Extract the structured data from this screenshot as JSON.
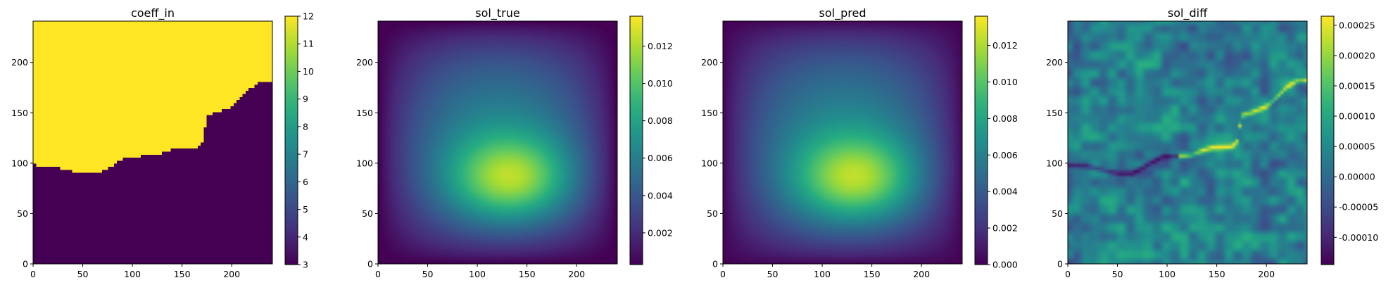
{
  "chart_data": [
    {
      "type": "heatmap",
      "title": "coeff_in",
      "xlim": [
        0,
        241
      ],
      "ylim": [
        0,
        241
      ],
      "xticks": [
        0,
        50,
        100,
        150,
        200
      ],
      "yticks": [
        0,
        50,
        100,
        150,
        200
      ],
      "colormap": "viridis",
      "colorbar": {
        "min": 3,
        "max": 12,
        "ticks": [
          3,
          4,
          5,
          6,
          7,
          8,
          9,
          10,
          11,
          12
        ],
        "labels": [
          "3",
          "4",
          "5",
          "6",
          "7",
          "8",
          "9",
          "10",
          "11",
          "12"
        ]
      },
      "field": {
        "kind": "two-phase",
        "value_above": 12,
        "value_below": 3,
        "interface_y": [
          [
            0,
            98
          ],
          [
            20,
            97
          ],
          [
            40,
            92
          ],
          [
            50,
            90
          ],
          [
            65,
            90
          ],
          [
            75,
            95
          ],
          [
            85,
            101
          ],
          [
            95,
            106
          ],
          [
            110,
            107
          ],
          [
            125,
            108
          ],
          [
            135,
            112
          ],
          [
            145,
            115
          ],
          [
            165,
            116
          ],
          [
            170,
            120
          ],
          [
            172,
            130
          ],
          [
            175,
            147
          ],
          [
            185,
            150
          ],
          [
            200,
            156
          ],
          [
            210,
            165
          ],
          [
            220,
            175
          ],
          [
            230,
            181
          ],
          [
            241,
            182
          ]
        ]
      }
    },
    {
      "type": "heatmap",
      "title": "sol_true",
      "xlim": [
        0,
        241
      ],
      "ylim": [
        0,
        241
      ],
      "xticks": [
        0,
        50,
        100,
        150,
        200
      ],
      "yticks": [
        0,
        50,
        100,
        150,
        200
      ],
      "colormap": "viridis",
      "colorbar": {
        "min": 0.0003,
        "max": 0.0136,
        "ticks": [
          0.002,
          0.004,
          0.006,
          0.008,
          0.01,
          0.012
        ],
        "labels": [
          "0.002",
          "0.004",
          "0.006",
          "0.008",
          "0.010",
          "0.012"
        ]
      },
      "field": {
        "kind": "smooth-peak",
        "peak_x": 138,
        "peak_y": 80,
        "max": 0.0136
      }
    },
    {
      "type": "heatmap",
      "title": "sol_pred",
      "xlim": [
        0,
        241
      ],
      "ylim": [
        0,
        241
      ],
      "xticks": [
        0,
        50,
        100,
        150,
        200
      ],
      "yticks": [
        0,
        50,
        100,
        150,
        200
      ],
      "colormap": "viridis",
      "colorbar": {
        "min": 0.0,
        "max": 0.0136,
        "ticks": [
          0.0,
          0.002,
          0.004,
          0.006,
          0.008,
          0.01,
          0.012
        ],
        "labels": [
          "0.000",
          "0.002",
          "0.004",
          "0.006",
          "0.008",
          "0.010",
          "0.012"
        ]
      },
      "field": {
        "kind": "smooth-peak",
        "peak_x": 138,
        "peak_y": 80,
        "max": 0.0136
      }
    },
    {
      "type": "heatmap",
      "title": "sol_diff",
      "xlim": [
        0,
        241
      ],
      "ylim": [
        0,
        241
      ],
      "xticks": [
        0,
        50,
        100,
        150,
        200
      ],
      "yticks": [
        0,
        50,
        100,
        150,
        200
      ],
      "colormap": "viridis",
      "colorbar": {
        "min": -0.000145,
        "max": 0.000265,
        "ticks": [
          -0.0001,
          -5e-05,
          0.0,
          5e-05,
          0.0001,
          0.00015,
          0.0002,
          0.00025
        ],
        "labels": [
          "-0.00010",
          "-0.00005",
          "0.00000",
          "0.00005",
          "0.00010",
          "0.00015",
          "0.00020",
          "0.00025"
        ]
      },
      "field": {
        "kind": "noise-with-interface-ridge",
        "mean": 3e-05
      }
    }
  ]
}
